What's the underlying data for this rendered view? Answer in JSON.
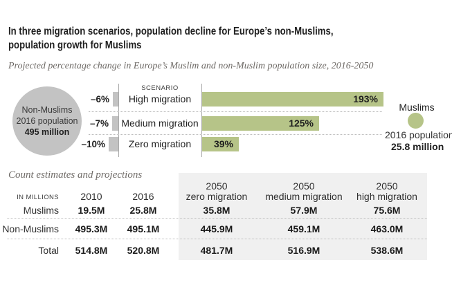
{
  "header": {
    "title_line1": "In three migration scenarios, population decline for Europe’s non-Muslims,",
    "title_line2": "population growth for Muslims",
    "subtitle": "Projected percentage change in Europe’s Muslim and non-Muslim population size, 2016-2050"
  },
  "chart_data": {
    "type": "bar",
    "orientation": "horizontal",
    "scenario_header": "SCENARIO",
    "categories": [
      "High migration",
      "Medium migration",
      "Zero migration"
    ],
    "series": [
      {
        "name": "Non-Muslims % change",
        "values": [
          -6,
          -7,
          -10
        ],
        "labels": [
          "–6%",
          "–7%",
          "–10%"
        ],
        "color": "#c3c3c3"
      },
      {
        "name": "Muslims % change",
        "values": [
          193,
          125,
          39
        ],
        "labels": [
          "193%",
          "125%",
          "39%"
        ],
        "color": "#b6c488"
      }
    ],
    "xlim": [
      -10,
      193
    ],
    "legend": {
      "non_muslims": {
        "name": "Non-Muslims",
        "caption": "2016 population",
        "value": "495 million"
      },
      "muslims": {
        "name": "Muslims",
        "caption": "2016 population",
        "value": "25.8 million"
      }
    }
  },
  "table": {
    "section_title": "Count estimates and projections",
    "unit_label": "IN MILLIONS",
    "columns": [
      {
        "line1": "2010",
        "line2": ""
      },
      {
        "line1": "2016",
        "line2": ""
      },
      {
        "line1": "2050",
        "line2": "zero migration"
      },
      {
        "line1": "2050",
        "line2": "medium migration"
      },
      {
        "line1": "2050",
        "line2": "high migration"
      }
    ],
    "rows": [
      {
        "label": "Muslims",
        "values": [
          "19.5M",
          "25.8M",
          "35.8M",
          "57.9M",
          "75.6M"
        ]
      },
      {
        "label": "Non-Muslims",
        "values": [
          "495.3M",
          "495.1M",
          "445.9M",
          "459.1M",
          "463.0M"
        ]
      },
      {
        "label": "Total",
        "values": [
          "514.8M",
          "520.8M",
          "481.7M",
          "516.9M",
          "538.6M"
        ]
      }
    ]
  },
  "colors": {
    "muslim_green": "#b6c488",
    "nonmuslim_gray": "#c3c3c3",
    "table_shade": "#f0f0f0"
  }
}
